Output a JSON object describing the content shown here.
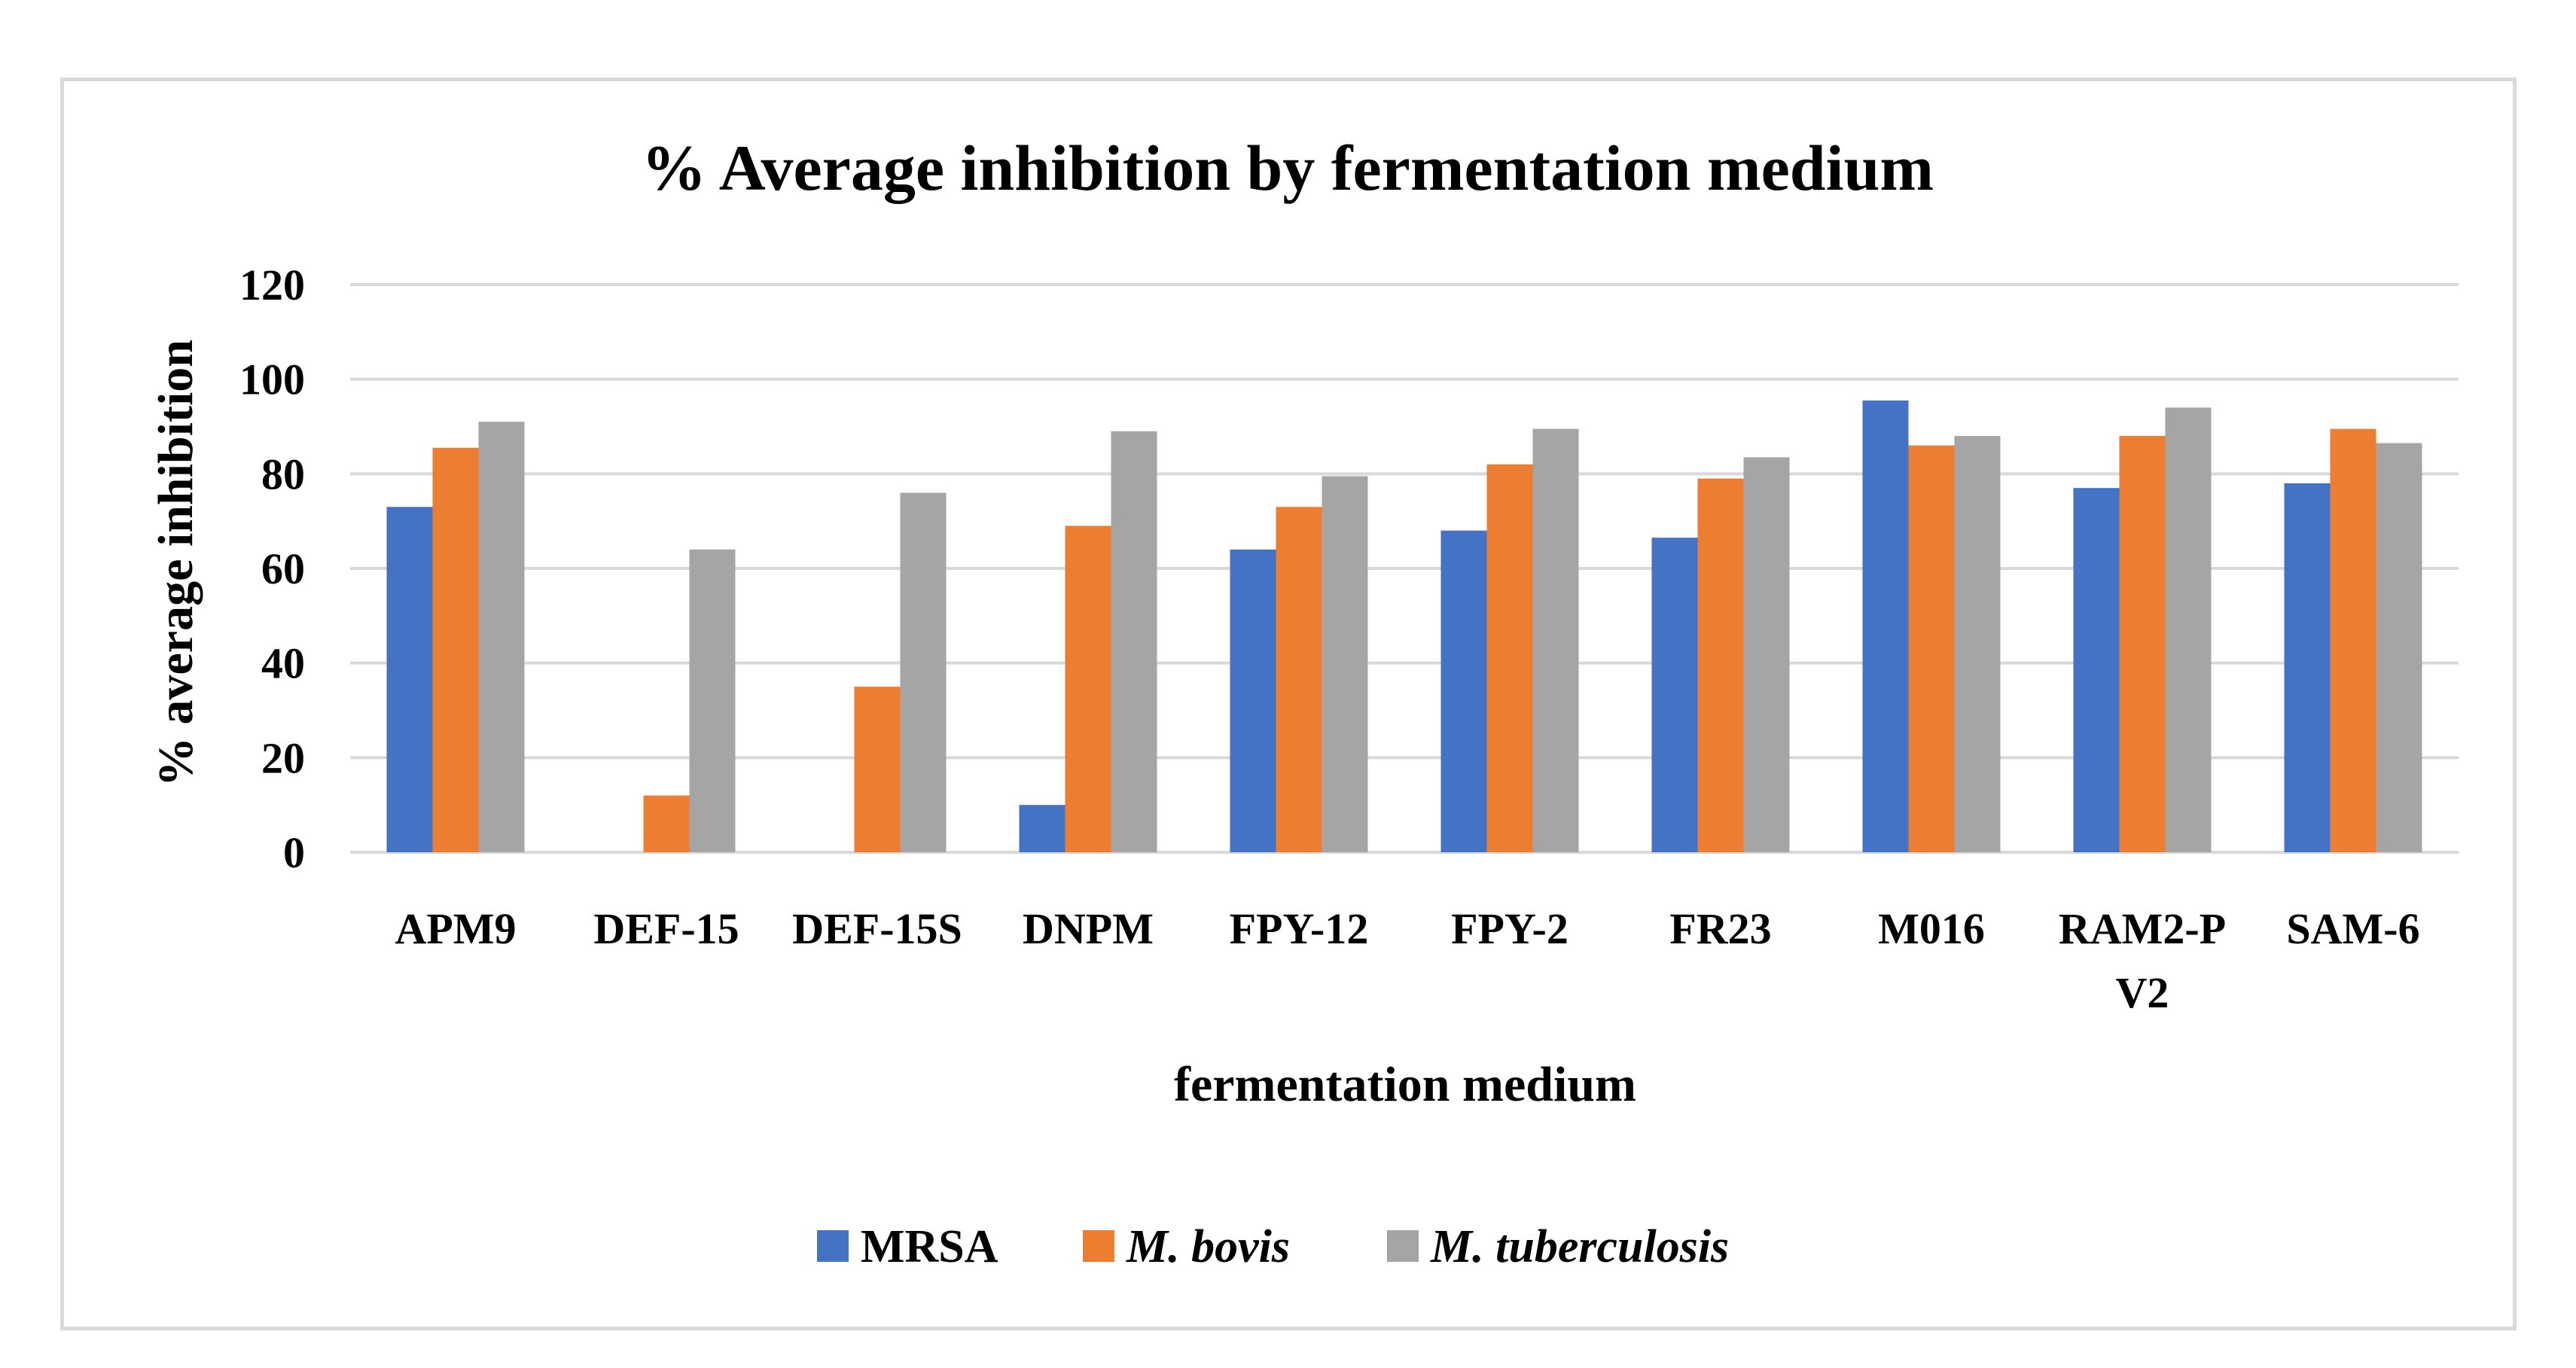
{
  "chart_data": {
    "type": "bar",
    "title": "% Average inhibition by fermentation medium",
    "xlabel": "fermentation medium",
    "ylabel": "% average inhibition",
    "ylim": [
      0,
      120
    ],
    "yticks": [
      0,
      20,
      40,
      60,
      80,
      100,
      120
    ],
    "grid": true,
    "legend_position": "bottom",
    "categories": [
      "APM9",
      "DEF-15",
      "DEF-15S",
      "DNPM",
      "FPY-12",
      "FPY-2",
      "FR23",
      "M016",
      "RAM2-PV2",
      "SAM-6"
    ],
    "category_label_lines": [
      [
        "APM9"
      ],
      [
        "DEF-15"
      ],
      [
        "DEF-15S"
      ],
      [
        "DNPM"
      ],
      [
        "FPY-12"
      ],
      [
        "FPY-2"
      ],
      [
        "FR23"
      ],
      [
        "M016"
      ],
      [
        "RAM2-P",
        "V2"
      ],
      [
        "SAM-6"
      ]
    ],
    "series": [
      {
        "name": "MRSA",
        "italic": false,
        "color": "#4472c4",
        "values": [
          73,
          0,
          0,
          10,
          64,
          68,
          66.5,
          95.5,
          77,
          78
        ]
      },
      {
        "name": "M. bovis",
        "italic": true,
        "color": "#ed7d31",
        "values": [
          85.5,
          12,
          35,
          69,
          73,
          82,
          79,
          86,
          88,
          89.5
        ]
      },
      {
        "name": "M. tuberculosis",
        "italic": true,
        "color": "#a5a5a5",
        "values": [
          91,
          64,
          76,
          89,
          79.5,
          89.5,
          83.5,
          88,
          94,
          86.5
        ]
      }
    ]
  }
}
